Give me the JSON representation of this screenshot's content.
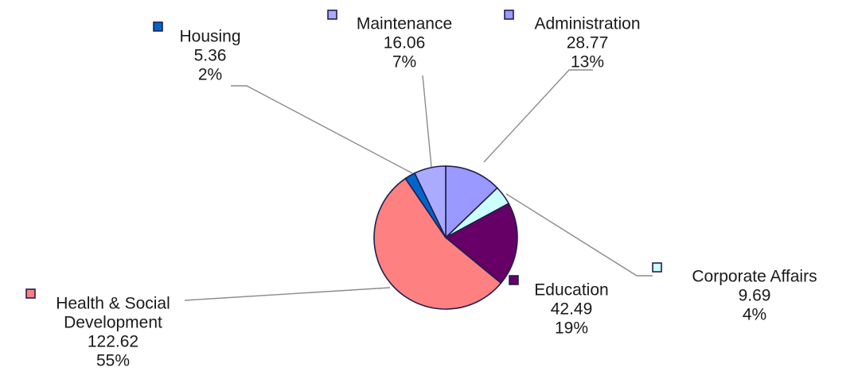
{
  "chart_data": {
    "type": "pie",
    "title": "",
    "slices": [
      {
        "name": "Administration",
        "value": "28.77",
        "percent": "13%",
        "color": "#9999ff"
      },
      {
        "name": "Corporate Affairs",
        "value": "9.69",
        "percent": "4%",
        "color": "#ccffff"
      },
      {
        "name": "Education",
        "value": "42.49",
        "percent": "19%",
        "color": "#660066"
      },
      {
        "name": "Health & Social Development",
        "value": "122.62",
        "percent": "55%",
        "color": "#ff8080"
      },
      {
        "name": "Housing",
        "value": "5.36",
        "percent": "2%",
        "color": "#0066cc"
      },
      {
        "name": "Maintenance",
        "value": "16.06",
        "percent": "7%",
        "color": "#aaaaff"
      }
    ]
  }
}
